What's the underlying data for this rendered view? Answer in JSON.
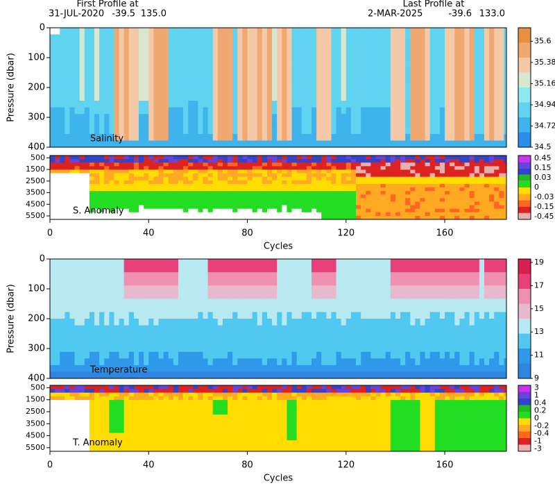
{
  "header": {
    "first": {
      "label": "First Profile at",
      "date": "31-JUL-2020",
      "lat": -39.5,
      "lon": "135.0"
    },
    "last": {
      "label": "Last Profile at",
      "date": "2-MAR-2025",
      "lat": -39.6,
      "lon": "133.0"
    }
  },
  "chart_data": [
    {
      "type": "contour",
      "label": "Salinity",
      "ylabel": "Pressure (dbar)",
      "xlim": [
        0,
        185
      ],
      "ylim": [
        0,
        400
      ],
      "yticks": [
        0,
        100,
        200,
        300,
        400
      ],
      "clim": [
        34.5,
        35.74
      ],
      "cticks": [
        34.5,
        34.72,
        34.94,
        35.16,
        35.38,
        35.6
      ],
      "colors": [
        "#2a8ee8",
        "#3fb4ec",
        "#5fd3f0",
        "#8ee8f0",
        "#d8e8d0",
        "#f5c8a8",
        "#f0a870",
        "#e89040"
      ]
    },
    {
      "type": "contour",
      "label": "S. Anomaly",
      "xlabel": "Cycles",
      "xlim": [
        0,
        185
      ],
      "ylim": [
        300,
        5800
      ],
      "yticks": [
        500,
        1500,
        2500,
        3500,
        4500,
        5500
      ],
      "xticks": [
        0,
        40,
        80,
        120,
        160
      ],
      "levels": [
        0.45,
        0.15,
        0.03,
        0,
        -0.03,
        -0.15,
        -0.45
      ],
      "colors": [
        "#e8b0b0",
        "#dd2222",
        "#ff6622",
        "#ffaa22",
        "#ffdd00",
        "#22dd22",
        "#22bb22",
        "#3344cc",
        "#6644dd",
        "#cc33ee"
      ]
    },
    {
      "type": "contour",
      "label": "Temperature",
      "ylabel": "Pressure (dbar)",
      "xlim": [
        0,
        185
      ],
      "ylim": [
        0,
        400
      ],
      "yticks": [
        0,
        100,
        200,
        300,
        400
      ],
      "clim": [
        9,
        19.3
      ],
      "cticks": [
        9,
        11,
        13,
        15,
        17,
        19
      ],
      "colors": [
        "#2f86e0",
        "#3098e8",
        "#50c8f0",
        "#b8e8f0",
        "#e8b8cc",
        "#f090b0",
        "#e8407a",
        "#d82050"
      ]
    },
    {
      "type": "contour",
      "label": "T. Anomaly",
      "xlabel": "Cycles",
      "xlim": [
        0,
        185
      ],
      "ylim": [
        300,
        5800
      ],
      "yticks": [
        500,
        1500,
        2500,
        3500,
        4500,
        5500
      ],
      "xticks": [
        0,
        40,
        80,
        120,
        160
      ],
      "levels": [
        3,
        1,
        0.4,
        0.2,
        0,
        -0.2,
        -0.4,
        -1,
        -3
      ],
      "colors": [
        "#e8b0b0",
        "#dd2222",
        "#ff6622",
        "#ffaa22",
        "#ffdd00",
        "#22dd22",
        "#22bb22",
        "#3344cc",
        "#6644dd",
        "#cc33ee"
      ]
    }
  ]
}
